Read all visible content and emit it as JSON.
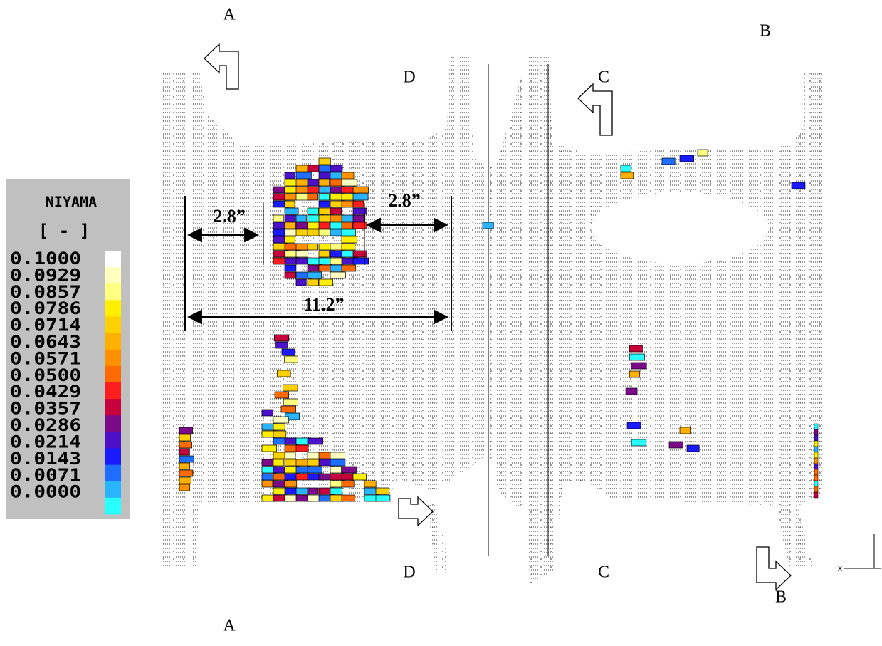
{
  "legend": {
    "title": "NIYAMA",
    "unit": "[ - ]",
    "labels": [
      "0.1000",
      "0.0929",
      "0.0857",
      "0.0786",
      "0.0714",
      "0.0643",
      "0.0571",
      "0.0500",
      "0.0429",
      "0.0357",
      "0.0286",
      "0.0214",
      "0.0143",
      "0.0071",
      "0.0000"
    ],
    "colors": [
      "#ffffff",
      "#ffffc0",
      "#ffff80",
      "#ffee00",
      "#ffd000",
      "#ffb000",
      "#ff9000",
      "#ff6a00",
      "#ff1e1e",
      "#c8003c",
      "#7a0a8a",
      "#4b10c8",
      "#1a1aff",
      "#1e6eff",
      "#28b4ff",
      "#28ffff"
    ]
  },
  "sections": [
    {
      "label": "A"
    },
    {
      "label": "A"
    },
    {
      "label": "B"
    },
    {
      "label": "B"
    },
    {
      "label": "C"
    },
    {
      "label": "C"
    },
    {
      "label": "D"
    },
    {
      "label": "D"
    }
  ],
  "dimensions": [
    {
      "label": "2.8”"
    },
    {
      "label": "2.8”"
    },
    {
      "label": "11.2”"
    }
  ],
  "axis_marker": "x"
}
